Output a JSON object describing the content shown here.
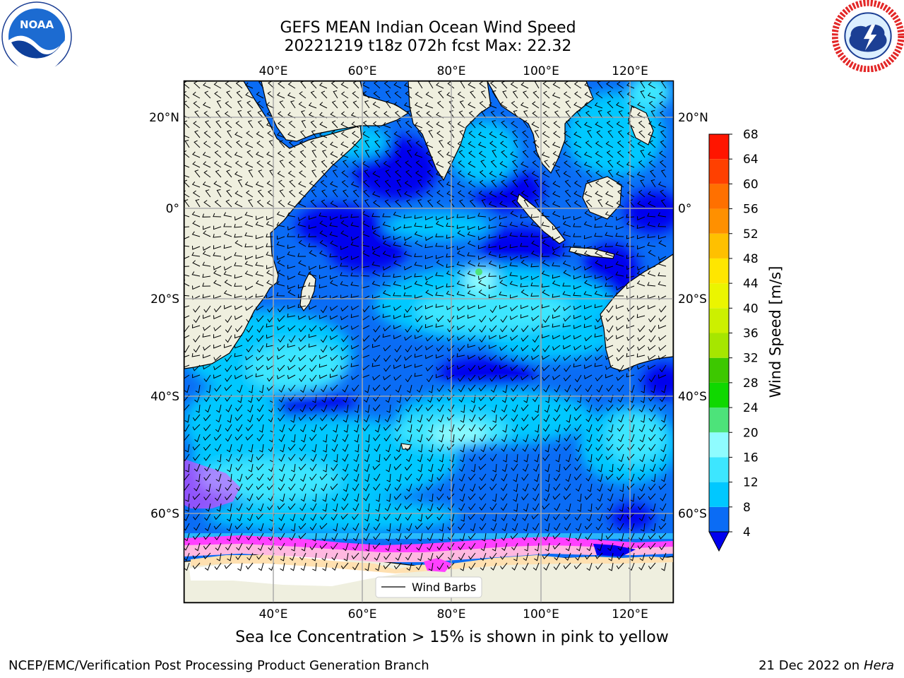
{
  "title": {
    "line1": "GEFS MEAN Indian Ocean Wind Speed",
    "line2": "20221219 t18z 072h fcst   Max: 22.32"
  },
  "logos": {
    "left": {
      "name": "NOAA",
      "ring_text": "NATIONAL OCEANIC AND ATMOSPHERIC ADMINISTRATION · U.S. DEPARTMENT OF COMMERCE"
    },
    "right": {
      "name": "NATIONAL WEATHER SERVICE"
    }
  },
  "map": {
    "lon_labels": [
      "40°E",
      "60°E",
      "80°E",
      "100°E",
      "120°E"
    ],
    "lat_labels": [
      "20°N",
      "0°",
      "20°S",
      "40°S",
      "60°S"
    ],
    "gridlines": true,
    "legend_label": "Wind Barbs",
    "extent": {
      "lon": [
        20,
        130
      ],
      "lat": [
        -72,
        28
      ]
    },
    "ocean_color": "#1a73ff",
    "land_color": "#efefdf"
  },
  "colorbar": {
    "title": "Wind Speed [m/s]",
    "levels": [
      "4",
      "8",
      "12",
      "16",
      "20",
      "24",
      "28",
      "32",
      "36",
      "40",
      "44",
      "48",
      "52",
      "56",
      "60",
      "64",
      "68"
    ],
    "colors": [
      "#0a6cf5",
      "#00c8ff",
      "#3de6ff",
      "#8ffcff",
      "#4de37a",
      "#10d800",
      "#3dc800",
      "#a6e600",
      "#ccf000",
      "#ebf500",
      "#ffe600",
      "#ffc000",
      "#ff9000",
      "#ff7000",
      "#ff4000",
      "#ff1500"
    ],
    "under_color": "#0000ee"
  },
  "footer": {
    "note": "Sea Ice Concentration > 15% is shown in pink to yellow",
    "credit_left": "NCEP/EMC/Verification Post Processing Product Generation Branch",
    "credit_date": "21 Dec 2022 on",
    "credit_host": "Hera"
  }
}
